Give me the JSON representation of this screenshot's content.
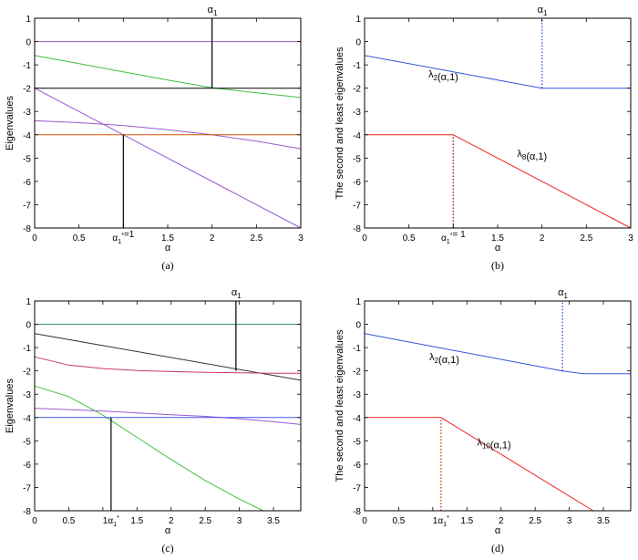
{
  "chart_data": [
    {
      "type": "line",
      "caption": "(a)",
      "ylabel": "Eigenvalues",
      "xlabel": "α",
      "xlim": [
        0,
        3
      ],
      "ylim": [
        -8,
        1
      ],
      "xticks": [
        0,
        0.5,
        1,
        1.5,
        2,
        2.5,
        3
      ],
      "xtick_labels": [
        "0",
        "0.5",
        "",
        "1.5",
        "2",
        "2.5",
        "3"
      ],
      "yticks": [
        1,
        0,
        -1,
        -2,
        -3,
        -4,
        -5,
        -6,
        -7,
        -8
      ],
      "ytick_labels": [
        "1",
        "0",
        "-1",
        "-2",
        "-3",
        "-4",
        "-5",
        "-6",
        "-7",
        "-8"
      ],
      "series": [
        {
          "color": "#9b59d0",
          "x": [
            0,
            3
          ],
          "y": [
            0,
            0
          ]
        },
        {
          "color": "#40c040",
          "x": [
            0,
            0.5,
            1,
            1.5,
            2,
            2.5,
            3
          ],
          "y": [
            -0.6,
            -0.95,
            -1.3,
            -1.65,
            -1.98,
            -2.2,
            -2.4
          ]
        },
        {
          "color": "#000000",
          "x": [
            0,
            3
          ],
          "y": [
            -2,
            -2
          ]
        },
        {
          "color": "#9b59d0",
          "x": [
            0,
            3
          ],
          "y": [
            -2,
            -8
          ]
        },
        {
          "color": "#9b59d0",
          "x": [
            0,
            0.5,
            1,
            1.5,
            2,
            2.5,
            3
          ],
          "y": [
            -3.4,
            -3.48,
            -3.6,
            -3.78,
            -4,
            -4.27,
            -4.6
          ]
        },
        {
          "color": "#d35400",
          "x": [
            0,
            3
          ],
          "y": [
            -4,
            -4
          ]
        }
      ],
      "markers": [
        {
          "x": 2,
          "y_from": -2,
          "y_to": 1,
          "style": "solid",
          "color": "#000000",
          "label": "α1",
          "label_pos": "top"
        },
        {
          "x": 1,
          "y_from": -8,
          "y_to": -4,
          "style": "solid",
          "color": "#000000",
          "label": "α1*=1",
          "label_pos": "tick"
        }
      ],
      "annotations": []
    },
    {
      "type": "line",
      "caption": "(b)",
      "ylabel": "The second and least eigenvalues",
      "xlabel": "α",
      "xlim": [
        0,
        3
      ],
      "ylim": [
        -8,
        1
      ],
      "xticks": [
        0,
        0.5,
        1,
        1.5,
        2,
        2.5,
        3
      ],
      "xtick_labels": [
        "0",
        "0.5",
        "",
        "1.5",
        "2",
        "2.5",
        "3"
      ],
      "yticks": [
        1,
        0,
        -1,
        -2,
        -3,
        -4,
        -5,
        -6,
        -7,
        -8
      ],
      "ytick_labels": [
        "1",
        "0",
        "-1",
        "-2",
        "-3",
        "-4",
        "-5",
        "-6",
        "-7",
        "-8"
      ],
      "series": [
        {
          "name": "λ2(α,1)",
          "color": "#3355dd",
          "x": [
            0,
            0.5,
            1,
            1.5,
            2,
            3
          ],
          "y": [
            -0.6,
            -0.95,
            -1.3,
            -1.65,
            -2,
            -2
          ]
        },
        {
          "name": "λ8(α,1)",
          "color": "#ee2222",
          "x": [
            0,
            1,
            3
          ],
          "y": [
            -4,
            -4,
            -8
          ]
        }
      ],
      "markers": [
        {
          "x": 2,
          "y_from": -2,
          "y_to": 1,
          "style": "dotted",
          "color": "#3355dd",
          "label": "α1",
          "label_pos": "top"
        },
        {
          "x": 1,
          "y_from": -8,
          "y_to": -4,
          "style": "dotted",
          "color": "#aa2222",
          "label": "α1*= 1",
          "label_pos": "tick"
        }
      ],
      "annotations": [
        {
          "text": "λ2(α,1)",
          "color": "#3355dd",
          "x": 0.72,
          "y": -1.55
        },
        {
          "text": "λ8(α,1)",
          "color": "#ee2222",
          "x": 1.72,
          "y": -4.95
        }
      ]
    },
    {
      "type": "line",
      "caption": "(c)",
      "ylabel": "Eigenvalues",
      "xlabel": "α",
      "xlim": [
        0,
        3.9
      ],
      "ylim": [
        -8,
        1
      ],
      "xticks": [
        0,
        0.5,
        1,
        1.5,
        2,
        2.5,
        3,
        3.5
      ],
      "xtick_labels": [
        "0",
        "0.5",
        "",
        "1.5",
        "2",
        "2.5",
        "3",
        "3.5"
      ],
      "yticks": [
        1,
        0,
        -1,
        -2,
        -3,
        -4,
        -5,
        -6,
        -7,
        -8
      ],
      "ytick_labels": [
        "1",
        "0",
        "-1",
        "-2",
        "-3",
        "-4",
        "-5",
        "-6",
        "-7",
        "-8"
      ],
      "series": [
        {
          "color": "#2e8b57",
          "x": [
            0,
            3.9
          ],
          "y": [
            0,
            0
          ]
        },
        {
          "color": "#333333",
          "x": [
            0,
            3.9
          ],
          "y": [
            -0.4,
            -2.4
          ]
        },
        {
          "color": "#cc3366",
          "x": [
            0,
            0.5,
            1,
            1.5,
            2,
            2.5,
            3,
            3.5,
            3.9
          ],
          "y": [
            -1.4,
            -1.75,
            -1.9,
            -1.98,
            -2.03,
            -2.06,
            -2.08,
            -2.1,
            -2.1
          ]
        },
        {
          "color": "#40c040",
          "x": [
            0,
            0.5,
            1,
            1.5,
            2,
            2.5,
            3,
            3.35
          ],
          "y": [
            -2.65,
            -3.1,
            -3.9,
            -4.85,
            -5.8,
            -6.7,
            -7.5,
            -8
          ]
        },
        {
          "color": "#9b59d0",
          "x": [
            0,
            0.5,
            1,
            1.5,
            2,
            2.5,
            3,
            3.5,
            3.9
          ],
          "y": [
            -3.6,
            -3.66,
            -3.72,
            -3.8,
            -3.88,
            -3.95,
            -4.05,
            -4.18,
            -4.3
          ]
        },
        {
          "color": "#4455ee",
          "x": [
            0,
            3.9
          ],
          "y": [
            -4,
            -4
          ]
        }
      ],
      "markers": [
        {
          "x": 2.95,
          "y_from": -2,
          "y_to": 1,
          "style": "solid",
          "color": "#000000",
          "label": "α1",
          "label_pos": "top"
        },
        {
          "x": 1.12,
          "y_from": -8,
          "y_to": -4,
          "style": "solid",
          "color": "#000000",
          "label": "1α1*",
          "label_pos": "tick"
        }
      ],
      "annotations": []
    },
    {
      "type": "line",
      "caption": "(d)",
      "ylabel": "The second and least eigenvalues",
      "xlabel": "α",
      "xlim": [
        0,
        3.9
      ],
      "ylim": [
        -8,
        1
      ],
      "xticks": [
        0,
        0.5,
        1,
        1.5,
        2,
        2.5,
        3,
        3.5
      ],
      "xtick_labels": [
        "0",
        "0.5",
        "",
        "1.5",
        "2",
        "2.5",
        "3",
        "3.5"
      ],
      "yticks": [
        1,
        0,
        -1,
        -2,
        -3,
        -4,
        -5,
        -6,
        -7,
        -8
      ],
      "ytick_labels": [
        "1",
        "0",
        "-1",
        "-2",
        "-3",
        "-4",
        "-5",
        "-6",
        "-7",
        "-8"
      ],
      "series": [
        {
          "name": "λ2(α,1)",
          "color": "#3355dd",
          "x": [
            0,
            2.9,
            3.2,
            3.9
          ],
          "y": [
            -0.4,
            -2,
            -2.12,
            -2.12
          ]
        },
        {
          "name": "λ10(α,1)",
          "color": "#ee2222",
          "x": [
            0,
            1.12,
            3.35
          ],
          "y": [
            -4,
            -4,
            -8
          ]
        }
      ],
      "markers": [
        {
          "x": 2.9,
          "y_from": -2,
          "y_to": 1,
          "style": "dotted",
          "color": "#3355dd",
          "label": "α1",
          "label_pos": "top"
        },
        {
          "x": 1.12,
          "y_from": -8,
          "y_to": -4,
          "style": "dotted",
          "color": "#cc4422",
          "label": "1α1*",
          "label_pos": "tick"
        }
      ],
      "annotations": [
        {
          "text": "λ2(α,1)",
          "color": "#3355dd",
          "x": 0.95,
          "y": -1.55
        },
        {
          "text": "λ10(α,1)",
          "color": "#ee2222",
          "x": 1.65,
          "y": -5.2
        }
      ]
    }
  ]
}
